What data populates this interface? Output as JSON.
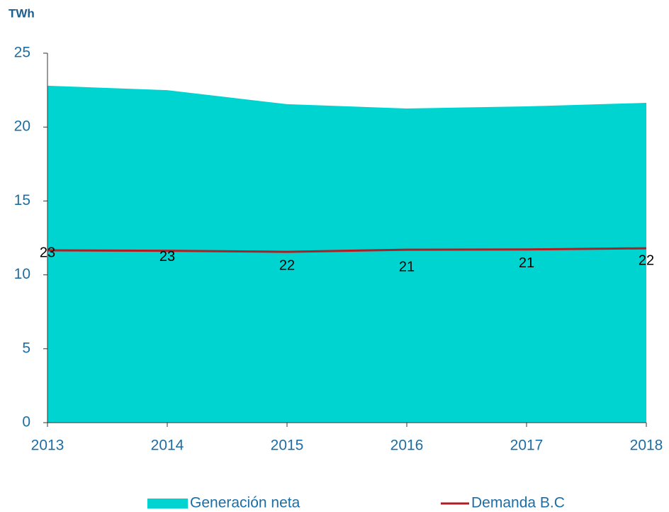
{
  "chart_data": {
    "type": "area_line",
    "y_label": "TWh",
    "x": [
      "2013",
      "2014",
      "2015",
      "2016",
      "2017",
      "2018"
    ],
    "series": [
      {
        "name": "Generación neta",
        "type": "area",
        "color": "#00d4d0",
        "values": [
          22.8,
          22.5,
          21.55,
          21.26,
          21.4,
          21.64
        ],
        "value_labels": [
          "23",
          "23",
          "22",
          "21",
          "21",
          "22"
        ]
      },
      {
        "name": "Demanda B.C",
        "type": "line",
        "color": "#b01e23",
        "values": [
          11.66,
          11.63,
          11.56,
          11.7,
          11.72,
          11.8
        ]
      }
    ],
    "ylim": [
      0,
      25
    ],
    "yticks": [
      0,
      5,
      10,
      15,
      20,
      25
    ]
  }
}
